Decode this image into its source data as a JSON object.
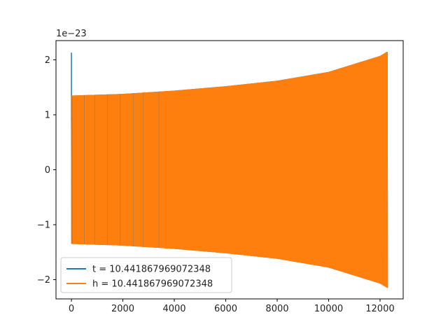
{
  "chart_data": {
    "type": "line",
    "title": "",
    "xlabel": "",
    "ylabel": "",
    "y_multiplier_label": "1e−23",
    "xlim": [
      -600,
      12900
    ],
    "ylim": [
      -2.35,
      2.35
    ],
    "x_ticks": [
      0,
      2000,
      4000,
      6000,
      8000,
      10000,
      12000
    ],
    "x_tick_labels": [
      "0",
      "2000",
      "4000",
      "6000",
      "8000",
      "10000",
      "12000"
    ],
    "y_ticks": [
      -2,
      -1,
      0,
      1,
      2
    ],
    "y_tick_labels": [
      "−2",
      "−1",
      "0",
      "1",
      "2"
    ],
    "grid": false,
    "legend_position": "lower-left",
    "series": [
      {
        "name": "t = 10.441867969072348",
        "color": "#1f77b4",
        "description_points": {
          "x": [
            0,
            0,
            0,
            20,
            40,
            60
          ],
          "y": [
            0.9,
            2.13,
            0.9,
            1.2,
            -1.3,
            1.3
          ]
        }
      },
      {
        "name": "h = 10.441867969072348",
        "color": "#ff7f0e",
        "envelope": {
          "x": [
            0,
            2000,
            4000,
            6000,
            8000,
            10000,
            12000,
            12290
          ],
          "upper": [
            1.35,
            1.38,
            1.44,
            1.52,
            1.62,
            1.78,
            2.07,
            2.15
          ],
          "lower": [
            -1.35,
            -1.38,
            -1.44,
            -1.52,
            -1.62,
            -1.78,
            -2.07,
            -2.15
          ]
        }
      }
    ]
  }
}
